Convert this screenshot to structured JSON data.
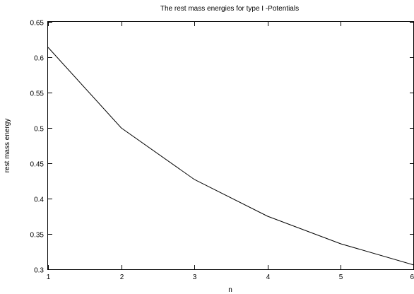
{
  "chart_data": {
    "type": "line",
    "title": "The rest mass energies for type I -Potentials",
    "xlabel": "n",
    "ylabel": "rest mass energy",
    "xlim": [
      1,
      6
    ],
    "ylim": [
      0.3,
      0.65
    ],
    "xticks": [
      1,
      2,
      3,
      4,
      5,
      6
    ],
    "xtick_labels": [
      "1",
      "2",
      "3",
      "4",
      "5",
      "6"
    ],
    "yticks": [
      0.3,
      0.35,
      0.4,
      0.45,
      0.5,
      0.55,
      0.6,
      0.65
    ],
    "ytick_labels": [
      "0.3",
      "0.35",
      "0.4",
      "0.45",
      "0.5",
      "0.55",
      "0.6",
      "0.65"
    ],
    "grid": false,
    "series": [
      {
        "x": [
          1,
          2,
          3,
          4,
          5,
          6
        ],
        "values": [
          0.614,
          0.5,
          0.427,
          0.375,
          0.336,
          0.306
        ]
      }
    ]
  }
}
